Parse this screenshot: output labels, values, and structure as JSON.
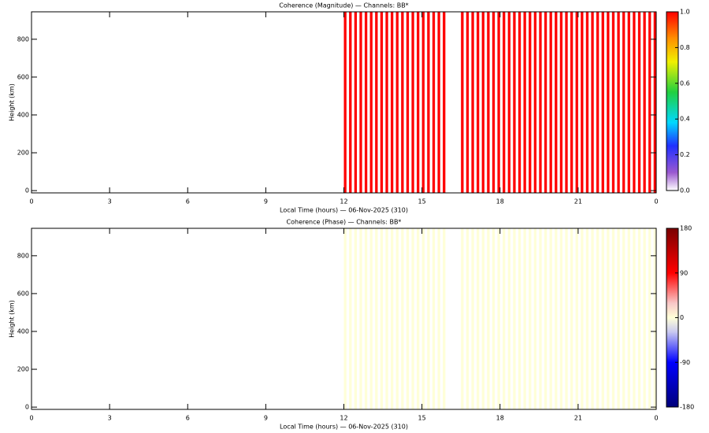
{
  "chart_data": [
    {
      "type": "heatmap",
      "title": "Coherence (Magnitude) — Channels: BB*",
      "x_label": "Local Time (hours) — 06-Nov-2025 (310)",
      "y_label": "Height (km)",
      "x": [
        12.0,
        12.2,
        12.4,
        12.6,
        12.8,
        13.0,
        13.2,
        13.4,
        13.6,
        13.8,
        14.0,
        14.2,
        14.4,
        14.6,
        14.8,
        15.0,
        15.2,
        15.4,
        15.6,
        15.8,
        16.5,
        16.7,
        16.9,
        17.1,
        17.3,
        17.5,
        17.7,
        17.9,
        18.1,
        18.3,
        18.5,
        18.7,
        18.9,
        19.1,
        19.3,
        19.5,
        19.7,
        19.9,
        20.1,
        20.3,
        20.5,
        20.7,
        20.9,
        21.1,
        21.3,
        21.5,
        21.7,
        21.9,
        22.1,
        22.3,
        22.5,
        22.7,
        22.9,
        23.1,
        23.3,
        23.5,
        23.7,
        23.9
      ],
      "values": [
        1,
        1,
        1,
        1,
        1,
        1,
        1,
        1,
        1,
        1,
        1,
        1,
        1,
        1,
        1,
        1,
        1,
        1,
        1,
        1,
        1,
        1,
        1,
        1,
        1,
        1,
        1,
        1,
        1,
        1,
        1,
        1,
        1,
        1,
        1,
        1,
        1,
        1,
        1,
        1,
        1,
        1,
        1,
        1,
        1,
        1,
        1,
        1,
        1,
        1,
        1,
        1,
        1,
        1,
        1,
        1,
        1,
        1
      ],
      "xlim": [
        0,
        24
      ],
      "xticks": [
        0,
        3,
        6,
        9,
        12,
        15,
        18,
        21,
        {
          "value": 24,
          "label": "0"
        }
      ],
      "ylim": [
        -12,
        945
      ],
      "yticks": [
        0,
        200,
        400,
        600,
        800
      ],
      "zlim": [
        0,
        1
      ],
      "zticks": [
        {
          "value": 0,
          "label": "0.0"
        },
        {
          "value": 0.2,
          "label": "0.2"
        },
        {
          "value": 0.4,
          "label": "0.4"
        },
        {
          "value": 0.6,
          "label": "0.6"
        },
        {
          "value": 0.8,
          "label": "0.8"
        },
        {
          "value": 1,
          "label": "1.0"
        }
      ],
      "colorscale": [
        [
          0,
          "#ffffff"
        ],
        [
          0.1,
          "#9b59d0"
        ],
        [
          0.25,
          "#2030ff"
        ],
        [
          0.38,
          "#00d8ff"
        ],
        [
          0.55,
          "#20d040"
        ],
        [
          0.72,
          "#f0f000"
        ],
        [
          0.85,
          "#ff9000"
        ],
        [
          1,
          "#ff0000"
        ]
      ]
    },
    {
      "type": "heatmap",
      "title": "Coherence (Phase) — Channels: BB*",
      "x_label": "Local Time (hours) — 06-Nov-2025 (310)",
      "y_label": "Height (km)",
      "x": [
        12.0,
        12.2,
        12.4,
        12.6,
        12.8,
        13.0,
        13.2,
        13.4,
        13.6,
        13.8,
        14.0,
        14.2,
        14.4,
        14.6,
        14.8,
        15.0,
        15.2,
        15.4,
        15.6,
        15.8,
        16.5,
        16.7,
        16.9,
        17.1,
        17.3,
        17.5,
        17.7,
        17.9,
        18.1,
        18.3,
        18.5,
        18.7,
        18.9,
        19.1,
        19.3,
        19.5,
        19.7,
        19.9,
        20.1,
        20.3,
        20.5,
        20.7,
        20.9,
        21.1,
        21.3,
        21.5,
        21.7,
        21.9,
        22.1,
        22.3,
        22.5,
        22.7,
        22.9,
        23.1,
        23.3,
        23.5,
        23.7,
        23.9
      ],
      "values": [
        0,
        0,
        0,
        0,
        0,
        0,
        0,
        0,
        0,
        0,
        0,
        0,
        0,
        0,
        0,
        0,
        0,
        0,
        0,
        0,
        0,
        0,
        0,
        0,
        0,
        0,
        0,
        0,
        0,
        0,
        0,
        0,
        0,
        0,
        0,
        0,
        0,
        0,
        0,
        0,
        0,
        0,
        0,
        0,
        0,
        0,
        0,
        0,
        0,
        0,
        0,
        0,
        0,
        0,
        0,
        0,
        0,
        0
      ],
      "xlim": [
        0,
        24
      ],
      "xticks": [
        0,
        3,
        6,
        9,
        12,
        15,
        18,
        21,
        {
          "value": 24,
          "label": "0"
        }
      ],
      "ylim": [
        -12,
        945
      ],
      "yticks": [
        0,
        200,
        400,
        600,
        800
      ],
      "zlim": [
        -180,
        180
      ],
      "zticks": [
        -180,
        -90,
        0,
        90,
        180
      ],
      "colorscale": [
        [
          0,
          "#00007a"
        ],
        [
          0.25,
          "#0000ff"
        ],
        [
          0.42,
          "#c8c8f0"
        ],
        [
          0.5,
          "#ffffd8"
        ],
        [
          0.58,
          "#f8c8c8"
        ],
        [
          0.75,
          "#ff0000"
        ],
        [
          1,
          "#7a0000"
        ]
      ]
    }
  ]
}
